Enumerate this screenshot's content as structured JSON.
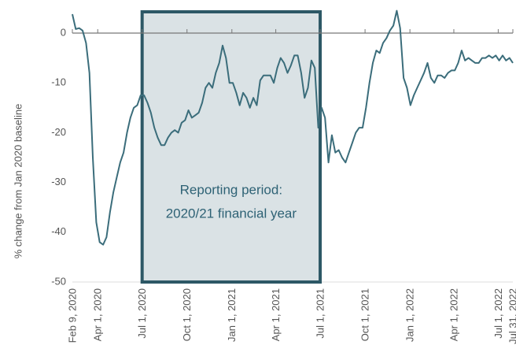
{
  "chart_data": {
    "type": "line",
    "y_label": "% change from Jan 2020 baseline",
    "annotation": {
      "lines": [
        "Reporting period:",
        "2020/21 financial year"
      ]
    },
    "ylim": [
      -50,
      5
    ],
    "yticks": [
      0,
      -10,
      -20,
      -30,
      -40,
      -50
    ],
    "xlim": [
      "2020-02-09",
      "2022-07-31"
    ],
    "xticks": [
      {
        "value": "2020-02-09",
        "label": "Feb 9, 2020"
      },
      {
        "value": "2020-04-01",
        "label": "Apr 1, 2020"
      },
      {
        "value": "2020-07-01",
        "label": "Jul 1, 2020"
      },
      {
        "value": "2020-10-01",
        "label": "Oct 1, 2020"
      },
      {
        "value": "2021-01-01",
        "label": "Jan 1, 2021"
      },
      {
        "value": "2021-04-01",
        "label": "Apr 1, 2021"
      },
      {
        "value": "2021-07-01",
        "label": "Jul 1, 2021"
      },
      {
        "value": "2021-10-01",
        "label": "Oct 1, 2021"
      },
      {
        "value": "2022-01-01",
        "label": "Jan 1, 2022"
      },
      {
        "value": "2022-04-01",
        "label": "Apr 1, 2022"
      },
      {
        "value": "2022-07-01",
        "label": "Jul 1, 2022"
      },
      {
        "value": "2022-07-31",
        "label": "Jul 31, 2022"
      }
    ],
    "color": "#3b6d7b",
    "x": [
      "2020-02-09",
      "2020-02-16",
      "2020-02-23",
      "2020-03-01",
      "2020-03-08",
      "2020-03-15",
      "2020-03-22",
      "2020-03-29",
      "2020-04-05",
      "2020-04-12",
      "2020-04-19",
      "2020-04-26",
      "2020-05-03",
      "2020-05-10",
      "2020-05-17",
      "2020-05-24",
      "2020-05-31",
      "2020-06-07",
      "2020-06-14",
      "2020-06-21",
      "2020-06-28",
      "2020-07-05",
      "2020-07-12",
      "2020-07-19",
      "2020-07-26",
      "2020-08-02",
      "2020-08-09",
      "2020-08-16",
      "2020-08-23",
      "2020-08-30",
      "2020-09-06",
      "2020-09-13",
      "2020-09-20",
      "2020-09-27",
      "2020-10-04",
      "2020-10-11",
      "2020-10-18",
      "2020-10-25",
      "2020-11-01",
      "2020-11-08",
      "2020-11-15",
      "2020-11-22",
      "2020-11-29",
      "2020-12-06",
      "2020-12-13",
      "2020-12-20",
      "2020-12-27",
      "2021-01-03",
      "2021-01-10",
      "2021-01-17",
      "2021-01-24",
      "2021-01-31",
      "2021-02-07",
      "2021-02-14",
      "2021-02-21",
      "2021-02-28",
      "2021-03-07",
      "2021-03-14",
      "2021-03-21",
      "2021-03-28",
      "2021-04-04",
      "2021-04-11",
      "2021-04-18",
      "2021-04-25",
      "2021-05-02",
      "2021-05-09",
      "2021-05-16",
      "2021-05-23",
      "2021-05-30",
      "2021-06-06",
      "2021-06-13",
      "2021-06-20",
      "2021-06-27",
      "2021-07-04",
      "2021-07-11",
      "2021-07-18",
      "2021-07-25",
      "2021-08-01",
      "2021-08-08",
      "2021-08-15",
      "2021-08-22",
      "2021-08-29",
      "2021-09-05",
      "2021-09-12",
      "2021-09-19",
      "2021-09-26",
      "2021-10-03",
      "2021-10-10",
      "2021-10-17",
      "2021-10-24",
      "2021-10-31",
      "2021-11-07",
      "2021-11-14",
      "2021-11-21",
      "2021-11-28",
      "2021-12-05",
      "2021-12-12",
      "2021-12-19",
      "2021-12-26",
      "2022-01-02",
      "2022-01-09",
      "2022-01-16",
      "2022-01-23",
      "2022-01-30",
      "2022-02-06",
      "2022-02-13",
      "2022-02-20",
      "2022-02-27",
      "2022-03-06",
      "2022-03-13",
      "2022-03-20",
      "2022-03-27",
      "2022-04-03",
      "2022-04-10",
      "2022-04-17",
      "2022-04-24",
      "2022-05-01",
      "2022-05-08",
      "2022-05-15",
      "2022-05-22",
      "2022-05-29",
      "2022-06-05",
      "2022-06-12",
      "2022-06-19",
      "2022-06-26",
      "2022-07-03",
      "2022-07-10",
      "2022-07-17",
      "2022-07-24",
      "2022-07-31"
    ],
    "values": [
      3.8,
      0.8,
      1,
      0.5,
      -2,
      -8,
      -25,
      -38,
      -42,
      -42.5,
      -41,
      -36,
      -32,
      -29,
      -26,
      -24,
      -20,
      -17,
      -15,
      -14.5,
      -12.5,
      -12.5,
      -14,
      -16,
      -19,
      -21,
      -22.5,
      -22.5,
      -21,
      -20,
      -19.5,
      -20,
      -18,
      -17.5,
      -15.5,
      -17,
      -16.5,
      -16,
      -14,
      -11,
      -10,
      -11,
      -8,
      -6,
      -2.5,
      -5,
      -10,
      -10,
      -12,
      -14.5,
      -12,
      -13,
      -15,
      -13,
      -14.5,
      -9.5,
      -8.5,
      -8.5,
      -8.5,
      -10,
      -7,
      -5,
      -6,
      -8,
      -6.5,
      -4.5,
      -4.5,
      -8,
      -13,
      -11,
      -5.5,
      -7,
      -19,
      -15,
      -17,
      -26,
      -20.5,
      -24,
      -23.5,
      -25,
      -26,
      -24,
      -22,
      -20,
      -19,
      -19,
      -15,
      -10,
      -6,
      -3.5,
      -4,
      -2,
      -1,
      0.5,
      1.5,
      4.5,
      1,
      -9,
      -11,
      -14.5,
      -12.5,
      -11,
      -9.5,
      -8,
      -6,
      -9,
      -10,
      -8.5,
      -8.5,
      -9,
      -8,
      -7.5,
      -7.5,
      -6,
      -3.5,
      -5.5,
      -5,
      -5.5,
      -6,
      -6,
      -5,
      -5,
      -4.5,
      -5,
      -4.5,
      -5.5,
      -4.5,
      -5.5,
      -5,
      -6
    ]
  }
}
